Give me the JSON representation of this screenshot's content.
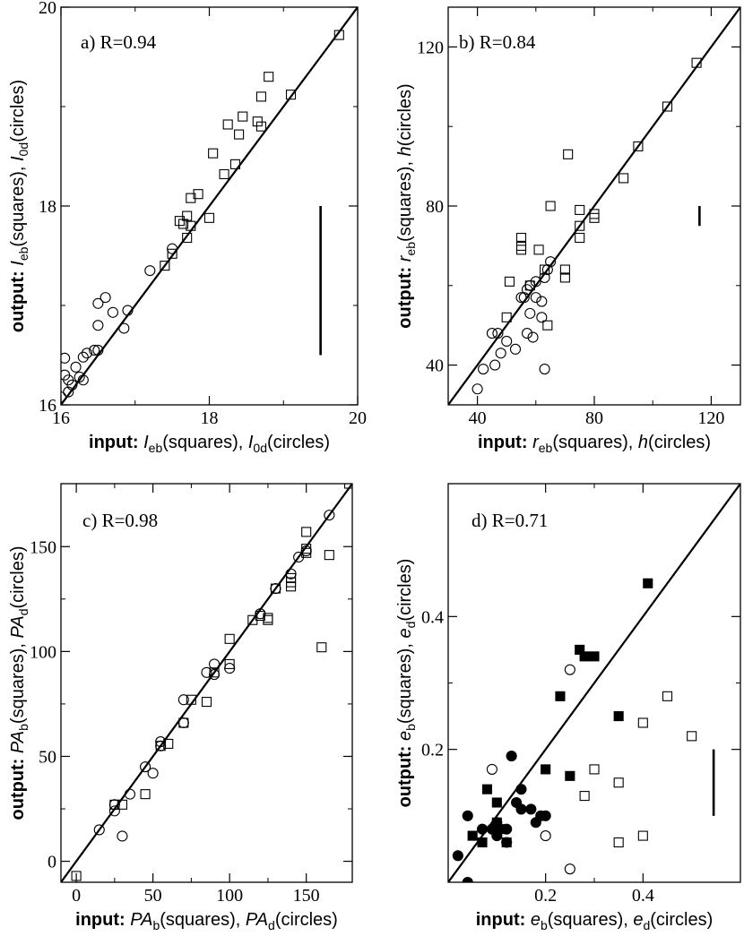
{
  "chart_data": [
    {
      "id": "a",
      "type": "scatter",
      "label": "a) R=0.94",
      "xlim": [
        16,
        20
      ],
      "ylim": [
        16,
        20
      ],
      "xticks": [
        "16",
        "18",
        "20"
      ],
      "yticks": [
        "16",
        "18",
        "20"
      ],
      "xlabel": {
        "bold": "input:",
        "q1": "I",
        "q1sub": "eb",
        "q1tail": "(squares), ",
        "q2": "I",
        "q2sub": "0d",
        "q2tail": "(circles)"
      },
      "ylabel": {
        "bold": "output:",
        "q1": "I",
        "q1sub": "eb",
        "q1tail": "(squares), ",
        "q2": "I",
        "q2sub": "0d",
        "q2tail": "(circles)"
      },
      "diagonal": true,
      "errorbar": {
        "x": 19.5,
        "y1": 16.5,
        "y2": 18.0
      },
      "series": [
        {
          "name": "squares",
          "marker": "square",
          "filled": false,
          "points": [
            [
              19.75,
              19.72
            ],
            [
              19.1,
              19.12
            ],
            [
              18.8,
              19.3
            ],
            [
              18.7,
              19.1
            ],
            [
              18.7,
              18.8
            ],
            [
              18.65,
              18.85
            ],
            [
              18.45,
              18.9
            ],
            [
              18.4,
              18.72
            ],
            [
              18.25,
              18.82
            ],
            [
              18.35,
              18.42
            ],
            [
              18.2,
              18.32
            ],
            [
              18.05,
              18.53
            ],
            [
              18.0,
              17.88
            ],
            [
              17.85,
              18.12
            ],
            [
              17.75,
              18.08
            ],
            [
              17.7,
              17.9
            ],
            [
              17.75,
              17.8
            ],
            [
              17.65,
              17.82
            ],
            [
              17.6,
              17.85
            ],
            [
              17.7,
              17.68
            ],
            [
              17.5,
              17.52
            ],
            [
              17.4,
              17.4
            ]
          ]
        },
        {
          "name": "circles",
          "marker": "circle",
          "filled": false,
          "points": [
            [
              16.0,
              16.08
            ],
            [
              16.1,
              16.13
            ],
            [
              16.15,
              16.2
            ],
            [
              16.25,
              16.28
            ],
            [
              16.3,
              16.25
            ],
            [
              16.2,
              16.38
            ],
            [
              16.3,
              16.48
            ],
            [
              16.35,
              16.52
            ],
            [
              16.45,
              16.55
            ],
            [
              16.5,
              16.55
            ],
            [
              16.05,
              16.3
            ],
            [
              16.1,
              16.25
            ],
            [
              16.05,
              16.47
            ],
            [
              16.5,
              16.8
            ],
            [
              16.7,
              16.93
            ],
            [
              16.85,
              16.77
            ],
            [
              16.9,
              16.95
            ],
            [
              16.6,
              17.08
            ],
            [
              16.5,
              17.02
            ],
            [
              17.2,
              17.35
            ],
            [
              17.5,
              17.57
            ]
          ]
        }
      ]
    },
    {
      "id": "b",
      "type": "scatter",
      "label": "b) R=0.84",
      "xlim": [
        30,
        130
      ],
      "ylim": [
        30,
        130
      ],
      "xticks": [
        "40",
        "80",
        "120"
      ],
      "yticks": [
        "40",
        "80",
        "120"
      ],
      "xlabel": {
        "bold": "input:",
        "q1": "r",
        "q1sub": "eb",
        "q1tail": "(squares), ",
        "q2": "h",
        "q2sub": "",
        "q2tail": "(circles)"
      },
      "ylabel": {
        "bold": "output:",
        "q1": "r",
        "q1sub": "eb",
        "q1tail": "(squares), ",
        "q2": "h",
        "q2sub": "",
        "q2tail": "(circles)"
      },
      "diagonal": true,
      "errorbar": {
        "x": 116,
        "y1": 75,
        "y2": 80
      },
      "series": [
        {
          "name": "squares",
          "marker": "square",
          "filled": false,
          "points": [
            [
              115,
              116
            ],
            [
              105,
              105
            ],
            [
              95,
              95
            ],
            [
              90,
              87
            ],
            [
              71,
              93
            ],
            [
              65,
              80
            ],
            [
              75,
              79
            ],
            [
              80,
              78
            ],
            [
              80,
              77
            ],
            [
              75,
              75
            ],
            [
              75,
              72
            ],
            [
              55,
              72
            ],
            [
              61,
              69
            ],
            [
              55,
              69
            ],
            [
              55,
              70
            ],
            [
              70,
              64
            ],
            [
              63,
              64
            ],
            [
              70,
              62
            ],
            [
              51,
              61
            ],
            [
              50,
              52
            ],
            [
              64,
              50
            ],
            [
              58,
              60
            ]
          ]
        },
        {
          "name": "circles",
          "marker": "circle",
          "filled": false,
          "points": [
            [
              40,
              34
            ],
            [
              42,
              39
            ],
            [
              46,
              40
            ],
            [
              48,
              43
            ],
            [
              45,
              48
            ],
            [
              47,
              48
            ],
            [
              50,
              46
            ],
            [
              53,
              44
            ],
            [
              57,
              48
            ],
            [
              59,
              47
            ],
            [
              58,
              53
            ],
            [
              62,
              52
            ],
            [
              60,
              57
            ],
            [
              62,
              56
            ],
            [
              63,
              62
            ],
            [
              64,
              64
            ],
            [
              65,
              66
            ],
            [
              58,
              60
            ],
            [
              55,
              57
            ],
            [
              56,
              57
            ],
            [
              57,
              59
            ],
            [
              60,
              61
            ],
            [
              63,
              39
            ]
          ]
        }
      ]
    },
    {
      "id": "c",
      "type": "scatter",
      "label": "c) R=0.98",
      "xlim": [
        -10,
        180
      ],
      "ylim": [
        -10,
        180
      ],
      "xticks": [
        "0",
        "50",
        "100",
        "150"
      ],
      "yticks": [
        "0",
        "50",
        "100",
        "150"
      ],
      "xlabel": {
        "bold": "input:",
        "q1": "PA",
        "q1sub": "b",
        "q1tail": "(squares), ",
        "q2": "PA",
        "q2sub": "d",
        "q2tail": "(circles)"
      },
      "ylabel": {
        "bold": "output:",
        "q1": "PA",
        "q1sub": "b",
        "q1tail": "(squares), ",
        "q2": "PA",
        "q2sub": "d",
        "q2tail": "(circles)"
      },
      "diagonal": true,
      "errorbar": null,
      "series": [
        {
          "name": "squares",
          "marker": "square",
          "filled": false,
          "points": [
            [
              0,
              -7
            ],
            [
              25,
              27
            ],
            [
              30,
              27
            ],
            [
              45,
              32
            ],
            [
              55,
              55
            ],
            [
              60,
              56
            ],
            [
              70,
              66
            ],
            [
              75,
              77
            ],
            [
              85,
              76
            ],
            [
              90,
              90
            ],
            [
              100,
              94
            ],
            [
              100,
              106
            ],
            [
              115,
              115
            ],
            [
              120,
              117
            ],
            [
              125,
              115
            ],
            [
              125,
              116
            ],
            [
              130,
              130
            ],
            [
              140,
              135
            ],
            [
              140,
              131
            ],
            [
              140,
              133
            ],
            [
              150,
              147
            ],
            [
              150,
              149
            ],
            [
              150,
              157
            ],
            [
              160,
              102
            ],
            [
              165,
              146
            ],
            [
              178,
              180
            ]
          ]
        },
        {
          "name": "circles",
          "marker": "circle",
          "filled": false,
          "points": [
            [
              15,
              15
            ],
            [
              25,
              24
            ],
            [
              25,
              27
            ],
            [
              30,
              12
            ],
            [
              35,
              32
            ],
            [
              45,
              45
            ],
            [
              50,
              42
            ],
            [
              55,
              57
            ],
            [
              55,
              55
            ],
            [
              70,
              77
            ],
            [
              70,
              66
            ],
            [
              85,
              90
            ],
            [
              90,
              89
            ],
            [
              90,
              94
            ],
            [
              100,
              92
            ],
            [
              120,
              118
            ],
            [
              130,
              130
            ],
            [
              140,
              137
            ],
            [
              145,
              145
            ],
            [
              150,
              148
            ],
            [
              165,
              165
            ]
          ]
        }
      ]
    },
    {
      "id": "d",
      "type": "scatter",
      "label": "d) R=0.71",
      "xlim": [
        0,
        0.6
      ],
      "ylim": [
        0,
        0.6
      ],
      "xticks": [
        "0.2",
        "0.4"
      ],
      "yticks": [
        "0.2",
        "0.4"
      ],
      "xlabel": {
        "bold": "input:",
        "q1": "e",
        "q1sub": "b",
        "q1tail": "(squares), ",
        "q2": "e",
        "q2sub": "d",
        "q2tail": "(circles)"
      },
      "ylabel": {
        "bold": "output:",
        "q1": "e",
        "q1sub": "b",
        "q1tail": "(squares), ",
        "q2": "e",
        "q2sub": "d",
        "q2tail": "(circles)"
      },
      "diagonal": true,
      "errorbar": {
        "x": 0.545,
        "y1": 0.1,
        "y2": 0.2
      },
      "series": [
        {
          "name": "filled squares",
          "marker": "square",
          "filled": true,
          "points": [
            [
              0.41,
              0.45
            ],
            [
              0.27,
              0.35
            ],
            [
              0.28,
              0.34
            ],
            [
              0.3,
              0.34
            ],
            [
              0.23,
              0.28
            ],
            [
              0.35,
              0.25
            ],
            [
              0.2,
              0.17
            ],
            [
              0.25,
              0.16
            ],
            [
              0.08,
              0.14
            ],
            [
              0.1,
              0.12
            ],
            [
              0.1,
              0.09
            ],
            [
              0.12,
              0.06
            ],
            [
              0.07,
              0.06
            ],
            [
              0.05,
              0.07
            ],
            [
              0.11,
              0.08
            ]
          ]
        },
        {
          "name": "filled circles",
          "marker": "circle",
          "filled": true,
          "points": [
            [
              0.02,
              0.04
            ],
            [
              0.04,
              0.1
            ],
            [
              0.04,
              0.0
            ],
            [
              0.07,
              0.08
            ],
            [
              0.09,
              0.08
            ],
            [
              0.1,
              0.07
            ],
            [
              0.12,
              0.08
            ],
            [
              0.12,
              0.06
            ],
            [
              0.13,
              0.19
            ],
            [
              0.14,
              0.12
            ],
            [
              0.15,
              0.11
            ],
            [
              0.17,
              0.11
            ],
            [
              0.18,
              0.09
            ],
            [
              0.19,
              0.1
            ],
            [
              0.2,
              0.1
            ],
            [
              0.15,
              0.14
            ],
            [
              0.1,
              0.09
            ]
          ]
        },
        {
          "name": "open squares",
          "marker": "square",
          "filled": false,
          "points": [
            [
              0.45,
              0.28
            ],
            [
              0.5,
              0.22
            ],
            [
              0.4,
              0.24
            ],
            [
              0.3,
              0.17
            ],
            [
              0.35,
              0.15
            ],
            [
              0.28,
              0.13
            ],
            [
              0.35,
              0.06
            ],
            [
              0.4,
              0.07
            ]
          ]
        },
        {
          "name": "open circles",
          "marker": "circle",
          "filled": false,
          "points": [
            [
              0.25,
              0.32
            ],
            [
              0.09,
              0.17
            ],
            [
              0.2,
              0.07
            ],
            [
              0.25,
              0.02
            ]
          ]
        }
      ]
    }
  ]
}
